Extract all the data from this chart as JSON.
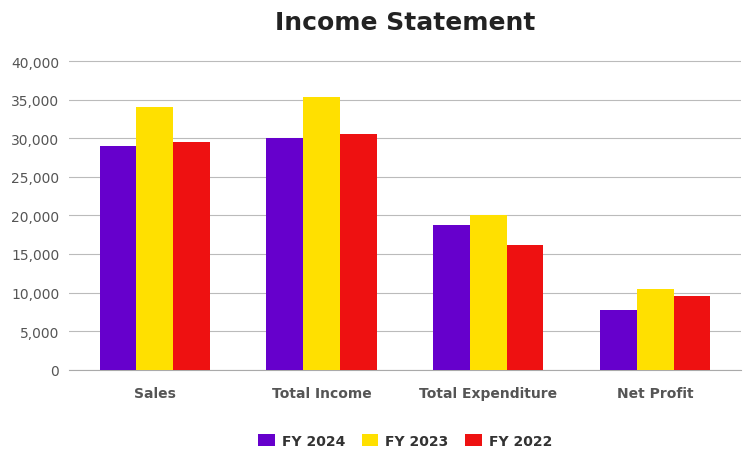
{
  "title": "Income Statement",
  "categories": [
    "Sales",
    "Total Income",
    "Total Expenditure",
    "Net Profit"
  ],
  "series": {
    "FY 2024": [
      29000,
      30000,
      18700,
      7700
    ],
    "FY 2023": [
      34000,
      35400,
      20000,
      10500
    ],
    "FY 2022": [
      29500,
      30600,
      16200,
      9600
    ]
  },
  "colors": {
    "FY 2024": "#6600CC",
    "FY 2023": "#FFE000",
    "FY 2022": "#EE1111"
  },
  "ylim": [
    0,
    42000
  ],
  "yticks": [
    0,
    5000,
    10000,
    15000,
    20000,
    25000,
    30000,
    35000,
    40000
  ],
  "ytick_labels": [
    "0",
    "5,000",
    "10,000",
    "15,000",
    "20,000",
    "25,000",
    "30,000",
    "35,000",
    "40,000"
  ],
  "title_fontsize": 18,
  "tick_fontsize": 10,
  "legend_fontsize": 10,
  "background_color": "#FFFFFF",
  "grid_color": "#BBBBBB",
  "bar_width": 0.22
}
